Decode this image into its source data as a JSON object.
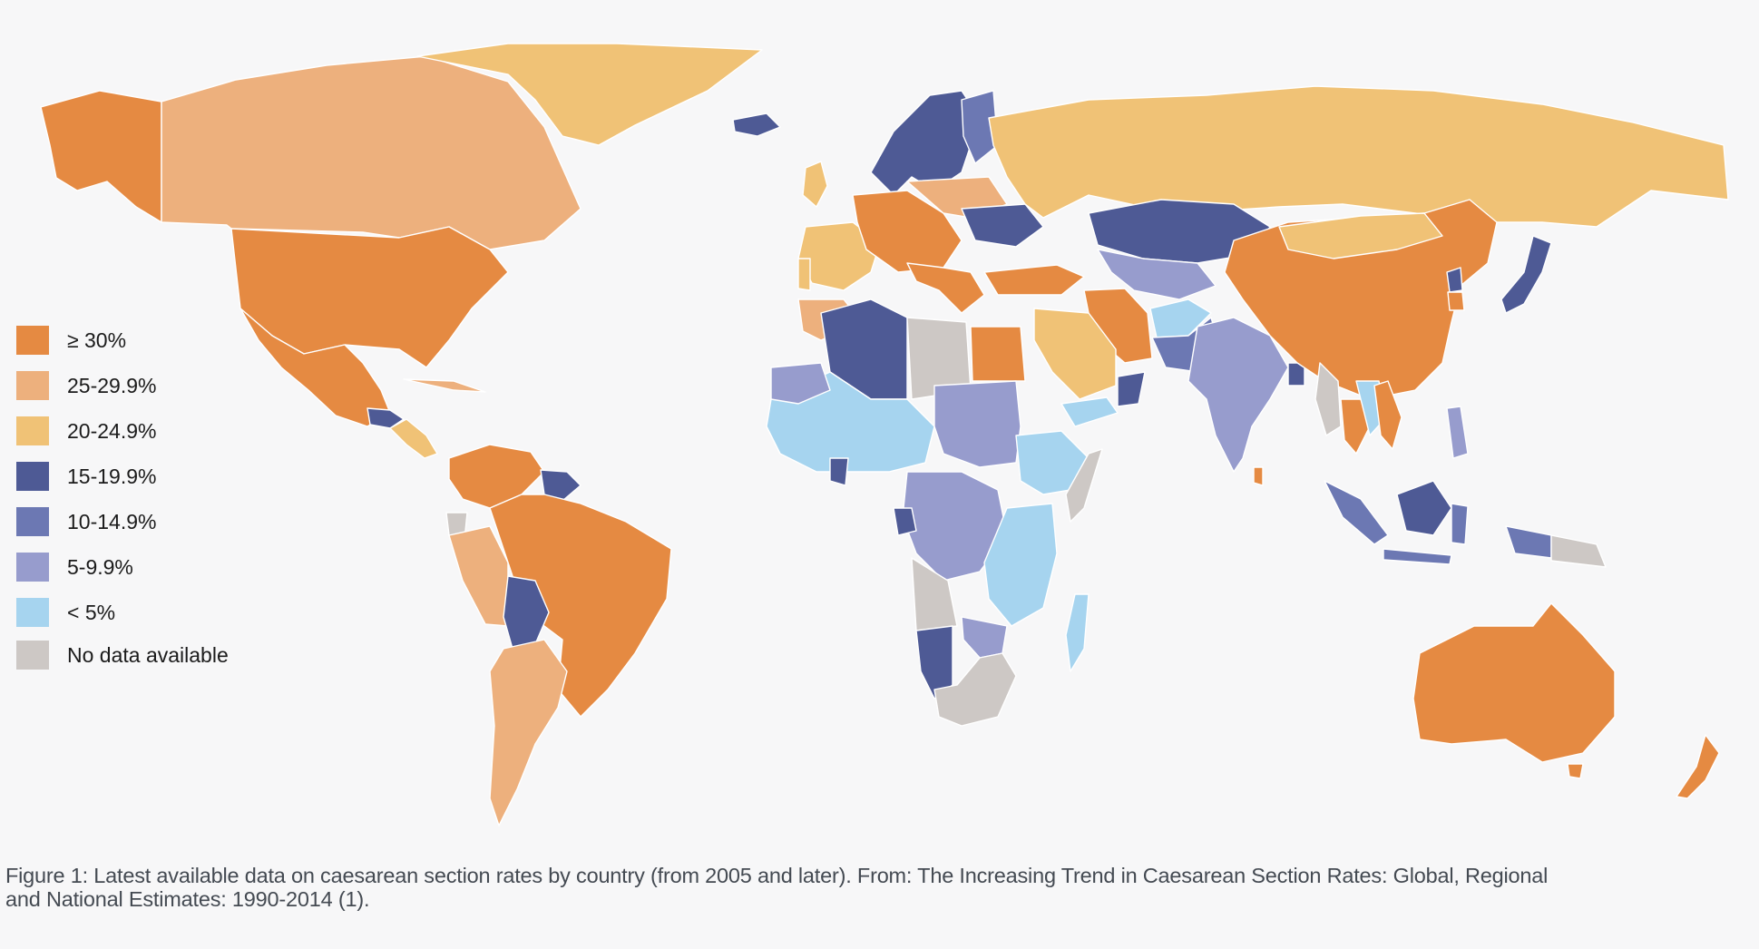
{
  "legend": [
    {
      "key": "gte30",
      "label": "≥ 30%",
      "color": "#e58a42"
    },
    {
      "key": "r25",
      "label": "25-29.9%",
      "color": "#edb07d"
    },
    {
      "key": "r20",
      "label": "20-24.9%",
      "color": "#f0c276"
    },
    {
      "key": "r15",
      "label": "15-19.9%",
      "color": "#4e5a95"
    },
    {
      "key": "r10",
      "label": "10-14.9%",
      "color": "#6c78b3"
    },
    {
      "key": "r5",
      "label": "5-9.9%",
      "color": "#979ccd"
    },
    {
      "key": "lt5",
      "label": "< 5%",
      "color": "#a6d4ef"
    },
    {
      "key": "nodata",
      "label": "No data available",
      "color": "#cdc8c5"
    }
  ],
  "caption": {
    "line1": "Figure 1: Latest available data on caesarean section rates by country (from 2005 and later). From: The Increasing Trend in Caesarean Section Rates: Global, Regional",
    "line2": "and National Estimates: 1990-2014 (1)."
  }
}
